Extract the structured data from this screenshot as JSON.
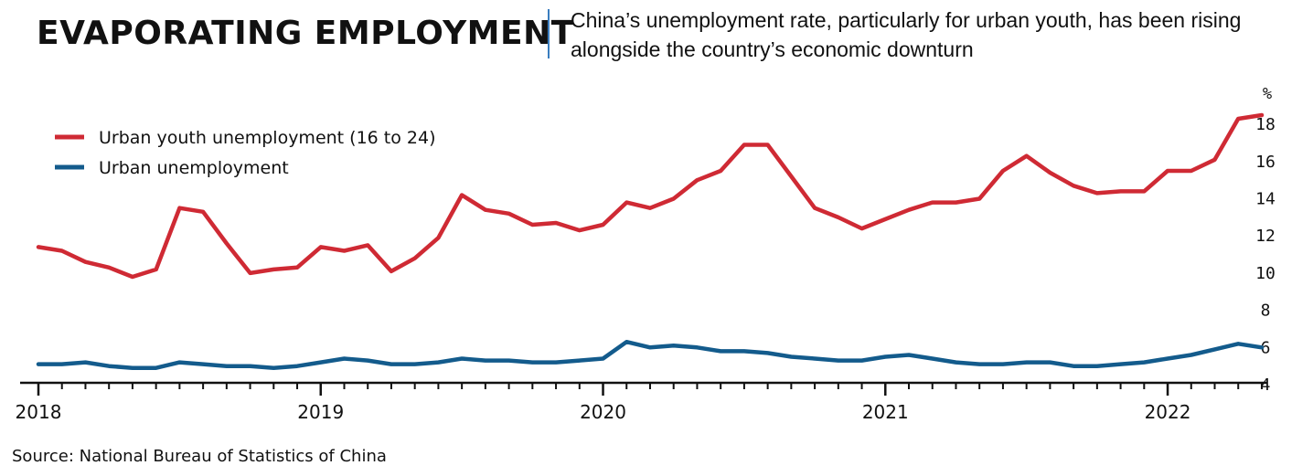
{
  "header": {
    "title": "EVAPORATING EMPLOYMENT",
    "subtitle": "China’s unemployment rate, particularly for urban youth, has been rising alongside the country’s economic downturn"
  },
  "source": "Source: National Bureau of Statistics of China",
  "chart_data": {
    "type": "line",
    "title": "EVAPORATING EMPLOYMENT",
    "subtitle": "China’s unemployment rate, particularly for urban youth, has been rising alongside the country’s economic downturn",
    "y_unit_label": "%",
    "ylim": [
      4,
      19
    ],
    "y_ticks": [
      4,
      6,
      8,
      10,
      12,
      14,
      16,
      18
    ],
    "x_tick_labels": [
      "2018",
      "2019",
      "2020",
      "2021",
      "2022"
    ],
    "x_start": "2018-01",
    "x_end": "2022-05",
    "grid": false,
    "legend_position": "top-left",
    "x": [
      "2018-01",
      "2018-02",
      "2018-03",
      "2018-04",
      "2018-05",
      "2018-06",
      "2018-07",
      "2018-08",
      "2018-09",
      "2018-10",
      "2018-11",
      "2018-12",
      "2019-01",
      "2019-02",
      "2019-03",
      "2019-04",
      "2019-05",
      "2019-06",
      "2019-07",
      "2019-08",
      "2019-09",
      "2019-10",
      "2019-11",
      "2019-12",
      "2020-01",
      "2020-02",
      "2020-03",
      "2020-04",
      "2020-05",
      "2020-06",
      "2020-07",
      "2020-08",
      "2020-09",
      "2020-10",
      "2020-11",
      "2020-12",
      "2021-01",
      "2021-02",
      "2021-03",
      "2021-04",
      "2021-05",
      "2021-06",
      "2021-07",
      "2021-08",
      "2021-09",
      "2021-10",
      "2021-11",
      "2021-12",
      "2022-01",
      "2022-02",
      "2022-03",
      "2022-04",
      "2022-05"
    ],
    "series": [
      {
        "name": "Urban youth unemployment (16 to 24)",
        "color": "#cf2a34",
        "values": [
          11.3,
          11.1,
          10.5,
          10.2,
          9.7,
          10.1,
          13.4,
          13.2,
          11.5,
          9.9,
          10.1,
          10.2,
          11.3,
          11.1,
          11.4,
          10.0,
          10.7,
          11.8,
          14.1,
          13.3,
          13.1,
          12.5,
          12.6,
          12.2,
          12.5,
          13.7,
          13.4,
          13.9,
          14.9,
          15.4,
          16.8,
          16.8,
          15.1,
          13.4,
          12.9,
          12.3,
          12.8,
          13.3,
          13.7,
          13.7,
          13.9,
          15.4,
          16.2,
          15.3,
          14.6,
          14.2,
          14.3,
          14.3,
          15.4,
          15.4,
          16.0,
          18.2,
          18.4
        ]
      },
      {
        "name": "Urban unemployment",
        "color": "#135b8c",
        "values": [
          5.0,
          5.0,
          5.1,
          4.9,
          4.8,
          4.8,
          5.1,
          5.0,
          4.9,
          4.9,
          4.8,
          4.9,
          5.1,
          5.3,
          5.2,
          5.0,
          5.0,
          5.1,
          5.3,
          5.2,
          5.2,
          5.1,
          5.1,
          5.2,
          5.3,
          6.2,
          5.9,
          6.0,
          5.9,
          5.7,
          5.7,
          5.6,
          5.4,
          5.3,
          5.2,
          5.2,
          5.4,
          5.5,
          5.3,
          5.1,
          5.0,
          5.0,
          5.1,
          5.1,
          4.9,
          4.9,
          5.0,
          5.1,
          5.3,
          5.5,
          5.8,
          6.1,
          5.9
        ]
      }
    ]
  }
}
